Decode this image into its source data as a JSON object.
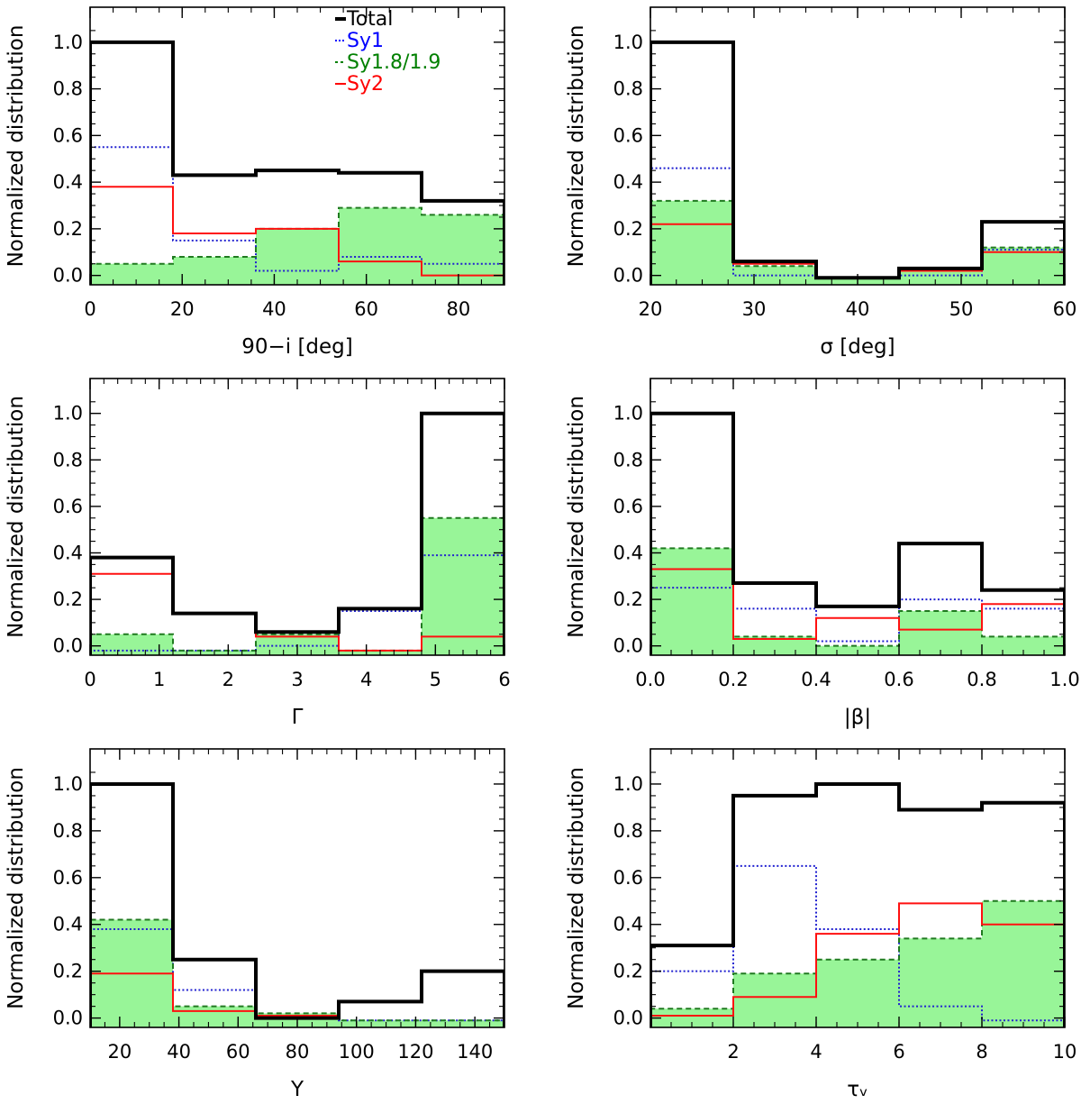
{
  "figure": {
    "ylabel": "Normalized distribution",
    "legend": [
      {
        "label": "Total",
        "color": "#000000",
        "style": "solid-thick"
      },
      {
        "label": "Sy1",
        "color": "#0000ff",
        "style": "dotted"
      },
      {
        "label": "Sy1.8/1.9",
        "color": "#008000",
        "style": "dashed"
      },
      {
        "label": "Sy2",
        "color": "#ff0000",
        "style": "solid"
      }
    ]
  },
  "colors": {
    "total": "#000000",
    "sy1": "#2020d0",
    "sy18": "#207a20",
    "sy18_fill": "#98f598",
    "sy2": "#ff1010"
  },
  "chart_data": [
    {
      "type": "bar",
      "xlabel": "90−i [deg]",
      "ylabel": "Normalized distribution",
      "xlim": [
        0,
        90
      ],
      "ylim": [
        -0.04,
        1.15
      ],
      "xticks": [
        0,
        20,
        40,
        60,
        80
      ],
      "xticklabels": [
        "0",
        "20",
        "40",
        "60",
        "80"
      ],
      "yticks": [
        0.0,
        0.2,
        0.4,
        0.6,
        0.8,
        1.0
      ],
      "yticklabels": [
        "0.0",
        "0.2",
        "0.4",
        "0.6",
        "0.8",
        "1.0"
      ],
      "bin_edges": [
        0,
        18,
        36,
        54,
        72,
        90
      ],
      "series": [
        {
          "name": "Total",
          "values": [
            1.0,
            0.43,
            0.45,
            0.44,
            0.32
          ]
        },
        {
          "name": "Sy1",
          "values": [
            0.55,
            0.15,
            0.02,
            0.08,
            0.05
          ]
        },
        {
          "name": "Sy1.8/1.9",
          "values": [
            0.05,
            0.08,
            0.2,
            0.29,
            0.26
          ]
        },
        {
          "name": "Sy2",
          "values": [
            0.38,
            0.18,
            0.2,
            0.06,
            0.0
          ]
        }
      ],
      "legend": "top-center"
    },
    {
      "type": "bar",
      "xlabel": "σ [deg]",
      "ylabel": "Normalized distribution",
      "xlim": [
        20,
        60
      ],
      "ylim": [
        -0.04,
        1.15
      ],
      "xticks": [
        20,
        30,
        40,
        50,
        60
      ],
      "xticklabels": [
        "20",
        "30",
        "40",
        "50",
        "60"
      ],
      "yticks": [
        0.0,
        0.2,
        0.4,
        0.6,
        0.8,
        1.0
      ],
      "yticklabels": [
        "0.0",
        "0.2",
        "0.4",
        "0.6",
        "0.8",
        "1.0"
      ],
      "bin_edges": [
        20,
        28,
        36,
        44,
        52,
        60
      ],
      "series": [
        {
          "name": "Total",
          "values": [
            1.0,
            0.06,
            -0.01,
            0.03,
            0.23
          ]
        },
        {
          "name": "Sy1",
          "values": [
            0.46,
            0.0,
            -0.01,
            0.0,
            0.11
          ]
        },
        {
          "name": "Sy1.8/1.9",
          "values": [
            0.32,
            0.04,
            -0.01,
            0.02,
            0.12
          ]
        },
        {
          "name": "Sy2",
          "values": [
            0.22,
            0.05,
            -0.01,
            0.02,
            0.1
          ]
        }
      ]
    },
    {
      "type": "bar",
      "xlabel": "Γ",
      "ylabel": "Normalized distribution",
      "xlim": [
        0,
        6
      ],
      "ylim": [
        -0.04,
        1.15
      ],
      "xticks": [
        0,
        1,
        2,
        3,
        4,
        5,
        6
      ],
      "xticklabels": [
        "0",
        "1",
        "2",
        "3",
        "4",
        "5",
        "6"
      ],
      "yticks": [
        0.0,
        0.2,
        0.4,
        0.6,
        0.8,
        1.0
      ],
      "yticklabels": [
        "0.0",
        "0.2",
        "0.4",
        "0.6",
        "0.8",
        "1.0"
      ],
      "bin_edges": [
        0,
        1.2,
        2.4,
        3.6,
        4.8,
        6.0
      ],
      "series": [
        {
          "name": "Total",
          "values": [
            0.38,
            0.14,
            0.06,
            0.16,
            1.0
          ]
        },
        {
          "name": "Sy1",
          "values": [
            -0.02,
            -0.02,
            0.0,
            0.15,
            0.39
          ]
        },
        {
          "name": "Sy1.8/1.9",
          "values": [
            0.05,
            -0.02,
            0.05,
            -0.02,
            0.55
          ]
        },
        {
          "name": "Sy2",
          "values": [
            0.31,
            0.14,
            0.04,
            -0.02,
            0.04
          ]
        }
      ]
    },
    {
      "type": "bar",
      "xlabel": "|β|",
      "ylabel": "Normalized distribution",
      "xlim": [
        0,
        1
      ],
      "ylim": [
        -0.04,
        1.15
      ],
      "xticks": [
        0,
        0.2,
        0.4,
        0.6,
        0.8,
        1.0
      ],
      "xticklabels": [
        "0.0",
        "0.2",
        "0.4",
        "0.6",
        "0.8",
        "1.0"
      ],
      "yticks": [
        0.0,
        0.2,
        0.4,
        0.6,
        0.8,
        1.0
      ],
      "yticklabels": [
        "0.0",
        "0.2",
        "0.4",
        "0.6",
        "0.8",
        "1.0"
      ],
      "bin_edges": [
        0,
        0.2,
        0.4,
        0.6,
        0.8,
        1.0
      ],
      "series": [
        {
          "name": "Total",
          "values": [
            1.0,
            0.27,
            0.17,
            0.44,
            0.24
          ]
        },
        {
          "name": "Sy1",
          "values": [
            0.25,
            0.16,
            0.02,
            0.2,
            0.16
          ]
        },
        {
          "name": "Sy1.8/1.9",
          "values": [
            0.42,
            0.04,
            0.0,
            0.15,
            0.04
          ]
        },
        {
          "name": "Sy2",
          "values": [
            0.33,
            0.03,
            0.12,
            0.07,
            0.18
          ]
        }
      ]
    },
    {
      "type": "bar",
      "xlabel": "Y",
      "ylabel": "Normalized distribution",
      "xlim": [
        10,
        150
      ],
      "ylim": [
        -0.04,
        1.15
      ],
      "xticks": [
        20,
        40,
        60,
        80,
        100,
        120,
        140
      ],
      "xticklabels": [
        "20",
        "40",
        "60",
        "80",
        "100",
        "120",
        "140"
      ],
      "yticks": [
        0.0,
        0.2,
        0.4,
        0.6,
        0.8,
        1.0
      ],
      "yticklabels": [
        "0.0",
        "0.2",
        "0.4",
        "0.6",
        "0.8",
        "1.0"
      ],
      "bin_edges": [
        10,
        38,
        66,
        94,
        122,
        150
      ],
      "series": [
        {
          "name": "Total",
          "values": [
            1.0,
            0.25,
            0.0,
            0.07,
            0.2
          ]
        },
        {
          "name": "Sy1",
          "values": [
            0.38,
            0.12,
            0.0,
            -0.01,
            -0.01
          ]
        },
        {
          "name": "Sy1.8/1.9",
          "values": [
            0.42,
            0.05,
            0.02,
            -0.01,
            -0.01
          ]
        },
        {
          "name": "Sy2",
          "values": [
            0.19,
            0.03,
            0.01,
            0.07,
            0.2
          ]
        }
      ]
    },
    {
      "type": "bar",
      "xlabel": "τᵥ",
      "ylabel": "Normalized distribution",
      "xlim": [
        0,
        10
      ],
      "ylim": [
        -0.04,
        1.15
      ],
      "xticks": [
        2,
        4,
        6,
        8,
        10
      ],
      "xticklabels": [
        "2",
        "4",
        "6",
        "8",
        "10"
      ],
      "yticks": [
        0.0,
        0.2,
        0.4,
        0.6,
        0.8,
        1.0
      ],
      "yticklabels": [
        "0.0",
        "0.2",
        "0.4",
        "0.6",
        "0.8",
        "1.0"
      ],
      "bin_edges": [
        0,
        2,
        4,
        6,
        8,
        10
      ],
      "series": [
        {
          "name": "Total",
          "values": [
            0.31,
            0.95,
            1.0,
            0.89,
            0.92
          ]
        },
        {
          "name": "Sy1",
          "values": [
            0.2,
            0.65,
            0.38,
            0.05,
            -0.01
          ]
        },
        {
          "name": "Sy1.8/1.9",
          "values": [
            0.04,
            0.19,
            0.25,
            0.34,
            0.5
          ]
        },
        {
          "name": "Sy2",
          "values": [
            0.01,
            0.09,
            0.36,
            0.49,
            0.4
          ]
        }
      ]
    }
  ]
}
